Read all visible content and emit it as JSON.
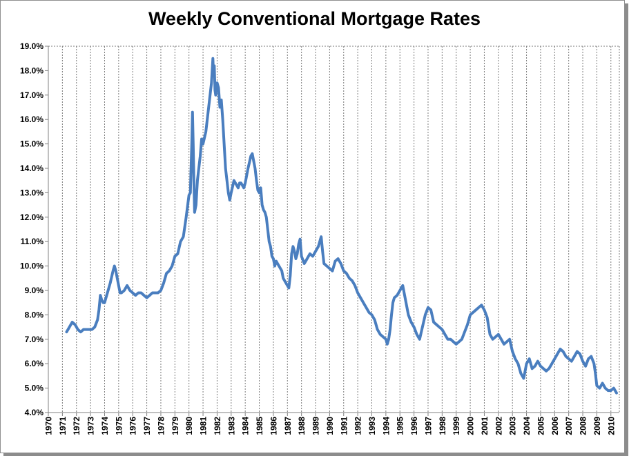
{
  "chart_data": {
    "type": "line",
    "title": "Weekly Conventional Mortgage Rates",
    "xlabel": "",
    "ylabel": "",
    "xlim": [
      1970,
      2010.6
    ],
    "ylim": [
      4.0,
      19.0
    ],
    "grid_x": true,
    "grid_y": false,
    "x_tick_labels": [
      "1970",
      "1971",
      "1972",
      "1973",
      "1974",
      "1975",
      "1976",
      "1977",
      "1978",
      "1979",
      "1980",
      "1981",
      "1982",
      "1983",
      "1984",
      "1985",
      "1986",
      "1987",
      "1988",
      "1989",
      "1990",
      "1991",
      "1992",
      "1993",
      "1994",
      "1995",
      "1996",
      "1997",
      "1998",
      "1999",
      "2000",
      "2001",
      "2002",
      "2003",
      "2004",
      "2005",
      "2006",
      "2007",
      "2008",
      "2009",
      "2010"
    ],
    "y_tick_labels": [
      "4.0%",
      "5.0%",
      "6.0%",
      "7.0%",
      "8.0%",
      "9.0%",
      "10.0%",
      "11.0%",
      "12.0%",
      "13.0%",
      "14.0%",
      "15.0%",
      "16.0%",
      "17.0%",
      "18.0%",
      "19.0%"
    ],
    "line_color": "#4a7ebf",
    "series": [
      {
        "x": [
          1971.3,
          1971.5,
          1971.7,
          1971.9,
          1972.1,
          1972.3,
          1972.5,
          1972.7,
          1972.9,
          1973.1,
          1973.3,
          1973.5,
          1973.6,
          1973.7,
          1973.8,
          1973.9,
          1974.0,
          1974.2,
          1974.4,
          1974.6,
          1974.7,
          1974.8,
          1974.9,
          1975.0,
          1975.1,
          1975.2,
          1975.4,
          1975.6,
          1975.8,
          1976.0,
          1976.2,
          1976.4,
          1976.6,
          1976.8,
          1977.0,
          1977.2,
          1977.4,
          1977.6,
          1977.8,
          1978.0,
          1978.2,
          1978.4,
          1978.6,
          1978.8,
          1979.0,
          1979.2,
          1979.4,
          1979.6,
          1979.8,
          1980.0,
          1980.1,
          1980.2,
          1980.25,
          1980.3,
          1980.35,
          1980.4,
          1980.5,
          1980.6,
          1980.7,
          1980.8,
          1980.9,
          1981.0,
          1981.2,
          1981.4,
          1981.6,
          1981.7,
          1981.75,
          1981.8,
          1981.85,
          1981.9,
          1982.0,
          1982.1,
          1982.2,
          1982.3,
          1982.4,
          1982.5,
          1982.6,
          1982.7,
          1982.8,
          1982.9,
          1983.0,
          1983.2,
          1983.4,
          1983.5,
          1983.6,
          1983.7,
          1983.8,
          1983.9,
          1984.0,
          1984.2,
          1984.4,
          1984.5,
          1984.6,
          1984.7,
          1984.8,
          1984.9,
          1985.0,
          1985.1,
          1985.2,
          1985.3,
          1985.4,
          1985.5,
          1985.6,
          1985.7,
          1985.8,
          1985.9,
          1986.0,
          1986.1,
          1986.2,
          1986.3,
          1986.4,
          1986.5,
          1986.6,
          1986.7,
          1986.8,
          1986.9,
          1987.0,
          1987.1,
          1987.2,
          1987.3,
          1987.4,
          1987.5,
          1987.6,
          1987.7,
          1987.8,
          1987.9,
          1988.0,
          1988.2,
          1988.4,
          1988.6,
          1988.8,
          1989.0,
          1989.2,
          1989.3,
          1989.4,
          1989.5,
          1989.6,
          1989.8,
          1990.0,
          1990.2,
          1990.3,
          1990.4,
          1990.6,
          1990.8,
          1991.0,
          1991.2,
          1991.4,
          1991.6,
          1991.8,
          1992.0,
          1992.2,
          1992.4,
          1992.6,
          1992.8,
          1993.0,
          1993.2,
          1993.4,
          1993.6,
          1993.8,
          1994.0,
          1994.1,
          1994.2,
          1994.3,
          1994.4,
          1994.5,
          1994.6,
          1994.8,
          1995.0,
          1995.2,
          1995.4,
          1995.6,
          1995.8,
          1996.0,
          1996.2,
          1996.4,
          1996.6,
          1996.8,
          1997.0,
          1997.2,
          1997.4,
          1997.6,
          1997.8,
          1998.0,
          1998.2,
          1998.4,
          1998.6,
          1998.8,
          1999.0,
          1999.2,
          1999.4,
          1999.6,
          1999.8,
          2000.0,
          2000.2,
          2000.4,
          2000.6,
          2000.8,
          2001.0,
          2001.2,
          2001.4,
          2001.6,
          2001.8,
          2002.0,
          2002.2,
          2002.4,
          2002.6,
          2002.8,
          2003.0,
          2003.2,
          2003.4,
          2003.5,
          2003.6,
          2003.8,
          2004.0,
          2004.2,
          2004.4,
          2004.6,
          2004.8,
          2005.0,
          2005.2,
          2005.4,
          2005.6,
          2005.8,
          2006.0,
          2006.2,
          2006.4,
          2006.6,
          2006.8,
          2007.0,
          2007.2,
          2007.4,
          2007.6,
          2007.8,
          2008.0,
          2008.2,
          2008.4,
          2008.6,
          2008.8,
          2008.9,
          2009.0,
          2009.2,
          2009.4,
          2009.6,
          2009.8,
          2010.0,
          2010.2,
          2010.4
        ],
        "y": [
          7.3,
          7.5,
          7.7,
          7.6,
          7.4,
          7.3,
          7.4,
          7.4,
          7.4,
          7.4,
          7.5,
          7.8,
          8.2,
          8.8,
          8.6,
          8.5,
          8.5,
          8.9,
          9.3,
          9.8,
          10.0,
          9.8,
          9.5,
          9.2,
          8.9,
          8.9,
          9.0,
          9.2,
          9.0,
          8.9,
          8.8,
          8.9,
          8.9,
          8.8,
          8.7,
          8.8,
          8.9,
          8.9,
          8.9,
          9.0,
          9.3,
          9.7,
          9.8,
          10.0,
          10.4,
          10.5,
          11.0,
          11.2,
          12.0,
          12.9,
          13.0,
          15.0,
          16.3,
          15.0,
          13.5,
          12.2,
          12.5,
          13.5,
          14.0,
          14.5,
          15.2,
          15.0,
          15.5,
          16.5,
          17.5,
          18.5,
          17.8,
          18.2,
          17.2,
          17.0,
          17.5,
          17.3,
          16.5,
          16.8,
          16.0,
          15.0,
          14.0,
          13.5,
          13.0,
          12.7,
          13.0,
          13.5,
          13.3,
          13.2,
          13.4,
          13.4,
          13.3,
          13.2,
          13.4,
          14.0,
          14.5,
          14.6,
          14.3,
          14.0,
          13.5,
          13.1,
          13.0,
          13.2,
          12.5,
          12.3,
          12.2,
          12.0,
          11.5,
          11.0,
          10.8,
          10.4,
          10.3,
          10.0,
          10.2,
          10.1,
          10.0,
          9.9,
          9.8,
          9.5,
          9.4,
          9.3,
          9.2,
          9.1,
          9.6,
          10.5,
          10.8,
          10.6,
          10.3,
          10.5,
          10.9,
          11.1,
          10.4,
          10.1,
          10.3,
          10.5,
          10.4,
          10.6,
          10.8,
          11.0,
          11.2,
          10.6,
          10.1,
          10.0,
          9.9,
          9.8,
          10.0,
          10.2,
          10.3,
          10.1,
          9.8,
          9.7,
          9.5,
          9.4,
          9.2,
          8.9,
          8.7,
          8.5,
          8.3,
          8.1,
          8.0,
          7.8,
          7.4,
          7.2,
          7.1,
          7.0,
          6.8,
          7.0,
          7.4,
          8.0,
          8.5,
          8.7,
          8.8,
          9.0,
          9.2,
          8.6,
          8.0,
          7.7,
          7.5,
          7.2,
          7.0,
          7.5,
          8.0,
          8.3,
          8.2,
          7.7,
          7.6,
          7.5,
          7.4,
          7.2,
          7.0,
          7.0,
          6.9,
          6.8,
          6.9,
          7.0,
          7.3,
          7.6,
          8.0,
          8.1,
          8.2,
          8.3,
          8.4,
          8.2,
          7.9,
          7.2,
          7.0,
          7.1,
          7.2,
          7.0,
          6.8,
          6.9,
          7.0,
          6.5,
          6.2,
          6.0,
          5.8,
          5.6,
          5.4,
          6.0,
          6.2,
          5.8,
          5.9,
          6.1,
          5.9,
          5.8,
          5.7,
          5.8,
          6.0,
          6.2,
          6.4,
          6.6,
          6.5,
          6.3,
          6.2,
          6.1,
          6.3,
          6.5,
          6.4,
          6.1,
          5.9,
          6.2,
          6.3,
          6.0,
          5.6,
          5.1,
          5.0,
          5.2,
          5.0,
          4.9,
          4.9,
          5.0,
          4.8
        ]
      }
    ]
  }
}
